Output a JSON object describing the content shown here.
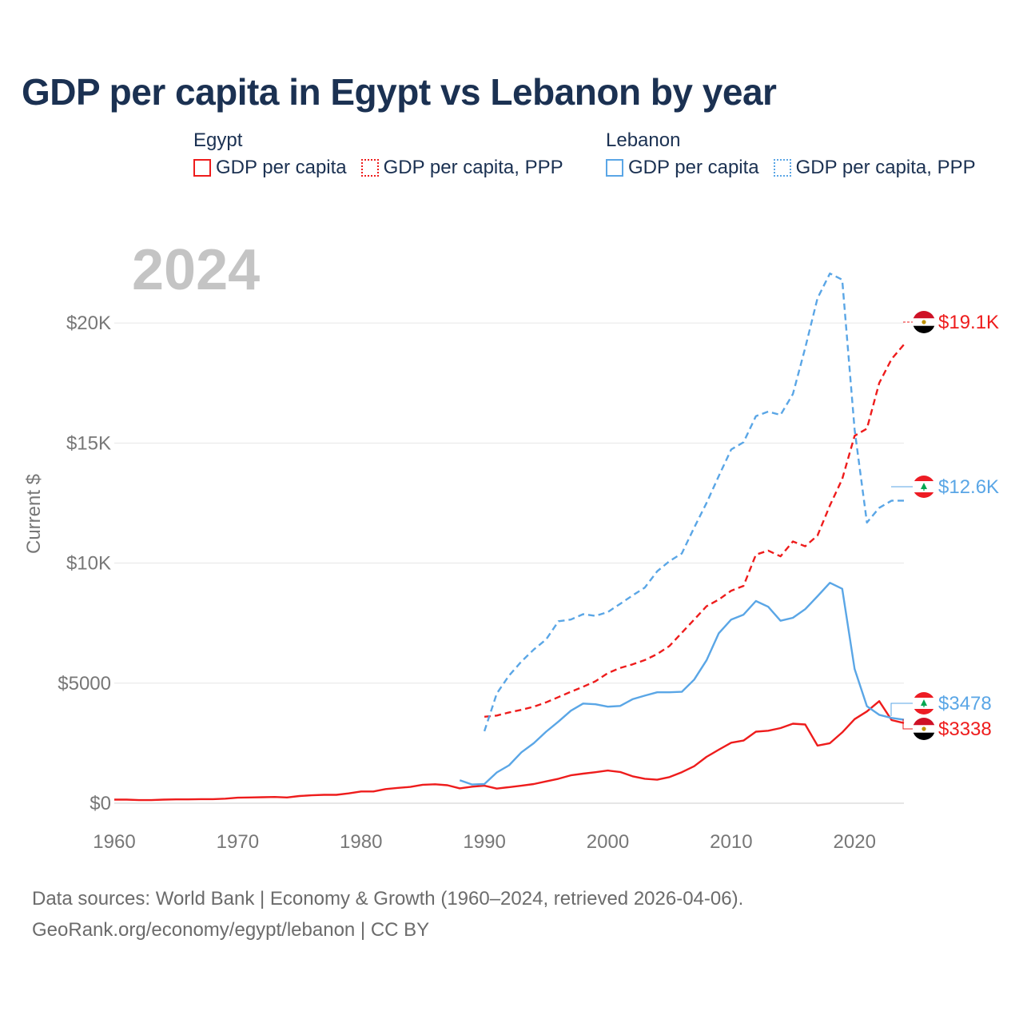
{
  "title": "GDP per capita in Egypt vs Lebanon by year",
  "legend": {
    "groups": [
      {
        "name": "Egypt",
        "items": [
          {
            "label": "GDP per capita",
            "color": "#ee1c1c",
            "style": "solid"
          },
          {
            "label": "GDP per capita, PPP",
            "color": "#ee1c1c",
            "style": "dotted"
          }
        ]
      },
      {
        "name": "Lebanon",
        "items": [
          {
            "label": "GDP per capita",
            "color": "#5aa6e6",
            "style": "solid"
          },
          {
            "label": "GDP per capita, PPP",
            "color": "#5aa6e6",
            "style": "dotted"
          }
        ]
      }
    ]
  },
  "year_watermark": "2024",
  "end_labels": {
    "egypt_ppp": "$19.1K",
    "lebanon_ppp": "$12.6K",
    "lebanon_gdp": "$3478",
    "egypt_gdp": "$3338"
  },
  "flags": {
    "egypt": "egypt-flag-icon",
    "lebanon": "lebanon-flag-icon"
  },
  "footer": {
    "line1": "Data sources: World Bank | Economy & Growth (1960–2024, retrieved 2026-04-06).",
    "line2": "GeoRank.org/economy/egypt/lebanon | CC BY"
  },
  "chart_data": {
    "type": "line",
    "title": "GDP per capita in Egypt vs Lebanon by year",
    "xlabel": "",
    "ylabel": "Current $",
    "xlim": [
      1960,
      2024
    ],
    "ylim": [
      0,
      22000
    ],
    "xticks": [
      1960,
      1970,
      1980,
      1990,
      2000,
      2010,
      2020
    ],
    "yticks": [
      {
        "value": 0,
        "label": "$0"
      },
      {
        "value": 5000,
        "label": "$5000"
      },
      {
        "value": 10000,
        "label": "$10K"
      },
      {
        "value": 15000,
        "label": "$15K"
      },
      {
        "value": 20000,
        "label": "$20K"
      }
    ],
    "grid": true,
    "series": [
      {
        "name": "Egypt GDP per capita",
        "color": "#ee1c1c",
        "dash": "solid",
        "x": [
          1960,
          1961,
          1962,
          1963,
          1964,
          1965,
          1966,
          1967,
          1968,
          1969,
          1970,
          1971,
          1972,
          1973,
          1974,
          1975,
          1976,
          1977,
          1978,
          1979,
          1980,
          1981,
          1982,
          1983,
          1984,
          1985,
          1986,
          1987,
          1988,
          1989,
          1990,
          1991,
          1992,
          1993,
          1994,
          1995,
          1996,
          1997,
          1998,
          1999,
          2000,
          2001,
          2002,
          2003,
          2004,
          2005,
          2006,
          2007,
          2008,
          2009,
          2010,
          2011,
          2012,
          2013,
          2014,
          2015,
          2016,
          2017,
          2018,
          2019,
          2020,
          2021,
          2022,
          2023,
          2024
        ],
        "y": [
          150,
          150,
          130,
          130,
          150,
          160,
          160,
          170,
          170,
          190,
          230,
          240,
          250,
          260,
          240,
          300,
          330,
          350,
          350,
          410,
          490,
          490,
          590,
          640,
          680,
          770,
          790,
          750,
          620,
          690,
          730,
          610,
          670,
          730,
          800,
          910,
          1020,
          1160,
          1230,
          1290,
          1360,
          1300,
          1120,
          1020,
          980,
          1090,
          1290,
          1540,
          1930,
          2230,
          2520,
          2610,
          2980,
          3020,
          3130,
          3310,
          3280,
          2400,
          2500,
          2950,
          3500,
          3820,
          4250,
          3460,
          3338
        ]
      },
      {
        "name": "Egypt GDP per capita, PPP",
        "color": "#ee1c1c",
        "dash": "dashed",
        "x": [
          1990,
          1991,
          1992,
          1993,
          1994,
          1995,
          1996,
          1997,
          1998,
          1999,
          2000,
          2001,
          2002,
          2003,
          2004,
          2005,
          2006,
          2007,
          2008,
          2009,
          2010,
          2011,
          2012,
          2013,
          2014,
          2015,
          2016,
          2017,
          2018,
          2019,
          2020,
          2021,
          2022,
          2023,
          2024
        ],
        "y": [
          3600,
          3650,
          3780,
          3890,
          4020,
          4200,
          4420,
          4640,
          4850,
          5080,
          5420,
          5630,
          5780,
          5960,
          6210,
          6550,
          7100,
          7650,
          8200,
          8480,
          8850,
          9050,
          10350,
          10520,
          10280,
          10900,
          10700,
          11150,
          12400,
          13500,
          15300,
          15600,
          17500,
          18500,
          19100
        ]
      },
      {
        "name": "Lebanon GDP per capita",
        "color": "#5aa6e6",
        "dash": "solid",
        "x": [
          1988,
          1989,
          1990,
          1991,
          1992,
          1993,
          1994,
          1995,
          1996,
          1997,
          1998,
          1999,
          2000,
          2001,
          2002,
          2003,
          2004,
          2005,
          2006,
          2007,
          2008,
          2009,
          2010,
          2011,
          2012,
          2013,
          2014,
          2015,
          2016,
          2017,
          2018,
          2019,
          2020,
          2021,
          2022,
          2023,
          2024
        ],
        "y": [
          960,
          780,
          800,
          1280,
          1580,
          2120,
          2500,
          2980,
          3400,
          3850,
          4150,
          4120,
          4020,
          4050,
          4330,
          4480,
          4620,
          4620,
          4640,
          5150,
          5950,
          7080,
          7650,
          7850,
          8420,
          8180,
          7600,
          7720,
          8080,
          8620,
          9180,
          8930,
          5590,
          4040,
          3680,
          3550,
          3478
        ]
      },
      {
        "name": "Lebanon GDP per capita, PPP",
        "color": "#5aa6e6",
        "dash": "dashed",
        "x": [
          1990,
          1991,
          1992,
          1993,
          1994,
          1995,
          1996,
          1997,
          1998,
          1999,
          2000,
          2001,
          2002,
          2003,
          2004,
          2005,
          2006,
          2007,
          2008,
          2009,
          2010,
          2011,
          2012,
          2013,
          2014,
          2015,
          2016,
          2017,
          2018,
          2019,
          2020,
          2021,
          2022,
          2023,
          2024
        ],
        "y": [
          3000,
          4570,
          5320,
          5900,
          6400,
          6820,
          7580,
          7650,
          7870,
          7800,
          7960,
          8300,
          8650,
          8980,
          9660,
          10080,
          10400,
          11480,
          12500,
          13630,
          14730,
          15030,
          16120,
          16310,
          16170,
          17040,
          18960,
          21030,
          22060,
          21800,
          15560,
          11690,
          12300,
          12600,
          12600
        ]
      }
    ]
  }
}
